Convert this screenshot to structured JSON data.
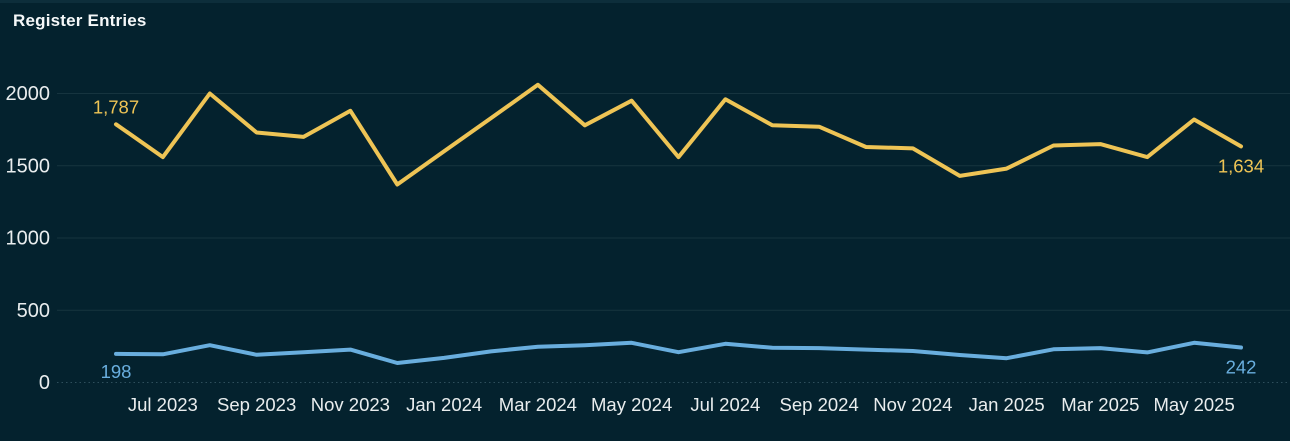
{
  "title": "Register Entries",
  "colors": {
    "background": "#04222e",
    "gridline": "#16343f",
    "zero_line": "#2e4f5c",
    "axis_text": "#e9edee",
    "title_text": "#f5f8f9",
    "yellow_series": "#eec455",
    "blue_series": "#69aede"
  },
  "chart_data": {
    "type": "line",
    "title": "Register Entries",
    "x": [
      "Jun 2023",
      "Jul 2023",
      "Aug 2023",
      "Sep 2023",
      "Oct 2023",
      "Nov 2023",
      "Dec 2023",
      "Jan 2024",
      "Feb 2024",
      "Mar 2024",
      "Apr 2024",
      "May 2024",
      "Jun 2024",
      "Jul 2024",
      "Aug 2024",
      "Sep 2024",
      "Oct 2024",
      "Nov 2024",
      "Dec 2024",
      "Jan 2025",
      "Feb 2025",
      "Mar 2025",
      "Apr 2025",
      "May 2025",
      "Jun 2025"
    ],
    "x_tick_labels": [
      "Jul 2023",
      "Sep 2023",
      "Nov 2023",
      "Jan 2024",
      "Mar 2024",
      "May 2024",
      "Jul 2024",
      "Sep 2024",
      "Nov 2024",
      "Jan 2025",
      "Mar 2025",
      "May 2025"
    ],
    "yticks": [
      0,
      500,
      1000,
      1500,
      2000
    ],
    "ylim": [
      0,
      2000
    ],
    "grid": "horizontal",
    "zero_line_style": "dotted",
    "legend": "none",
    "series": [
      {
        "id": "yellow",
        "color": "#eec455",
        "values": [
          1787,
          1560,
          2000,
          1730,
          1700,
          1880,
          1370,
          1600,
          1830,
          2060,
          1780,
          1950,
          1560,
          1960,
          1780,
          1770,
          1630,
          1620,
          1430,
          1480,
          1640,
          1650,
          1560,
          1820,
          1634
        ],
        "first_point_label": "1,787",
        "last_point_label": "1,634",
        "first_label_position": "above",
        "last_label_position": "below"
      },
      {
        "id": "blue",
        "color": "#69aede",
        "values": [
          198,
          195,
          258,
          192,
          210,
          228,
          135,
          170,
          215,
          248,
          258,
          275,
          210,
          268,
          240,
          238,
          228,
          218,
          190,
          168,
          230,
          238,
          208,
          275,
          242
        ],
        "first_point_label": "198",
        "last_point_label": "242",
        "first_label_position": "below",
        "last_label_position": "below"
      }
    ]
  }
}
